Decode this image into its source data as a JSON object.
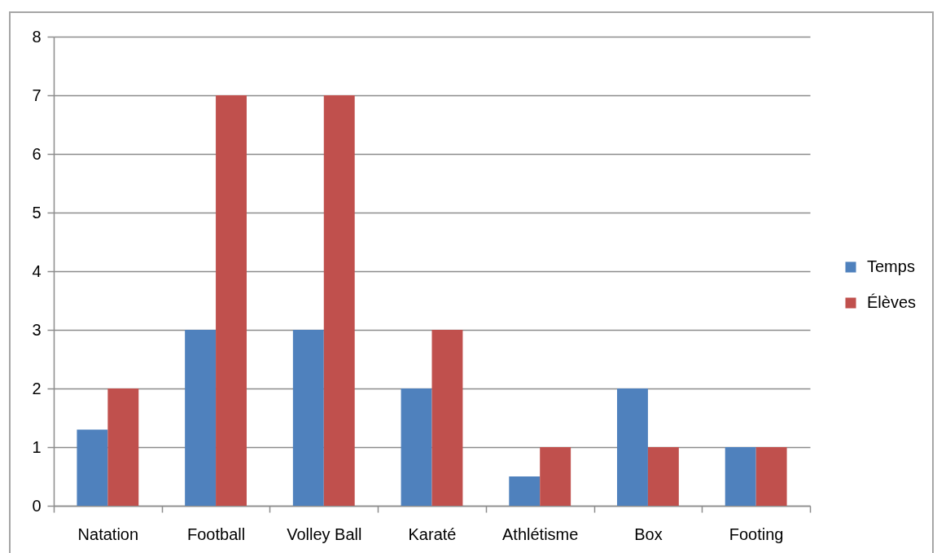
{
  "chart_data": {
    "type": "bar",
    "categories": [
      "Natation",
      "Football",
      "Volley Ball",
      "Karaté",
      "Athlétisme",
      "Box",
      "Footing"
    ],
    "series": [
      {
        "name": "Temps",
        "color": "#4f81bd",
        "values": [
          1.3,
          3,
          3,
          2,
          0.5,
          2,
          1
        ]
      },
      {
        "name": "Élèves",
        "color": "#c0504d",
        "values": [
          2,
          7,
          7,
          3,
          1,
          1,
          1
        ]
      }
    ],
    "ylim": [
      0,
      8
    ],
    "yticks": [
      0,
      1,
      2,
      3,
      4,
      5,
      6,
      7,
      8
    ],
    "grid": "y",
    "legend": "right"
  }
}
